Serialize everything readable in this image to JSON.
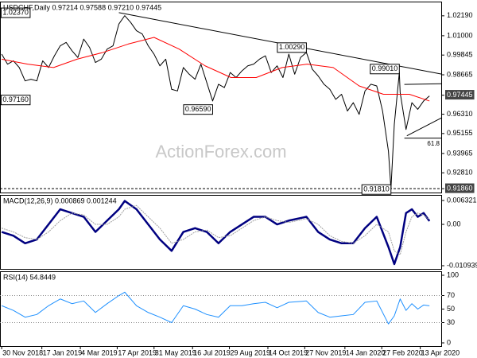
{
  "chart_data": [
    {
      "type": "line",
      "title": "USDCHF,Daily  0.97214 0.97588 0.97210 0.97445",
      "watermark": "ActionForex.com",
      "xlim": [
        "2018-11-28",
        "2020-05-09"
      ],
      "ylim": [
        0.91631,
        1.03039
      ],
      "yticks": [
        {
          "value": 1.0219,
          "label": "1.02190"
        },
        {
          "value": 1.01,
          "label": "1.01000"
        },
        0.99845,
        0.98665,
        0.97445,
        {
          "value": 0.9631,
          "label": "0.96310"
        },
        0.95155,
        0.93965,
        {
          "value": 0.9281,
          "label": "0.92810"
        },
        {
          "value": 0.9186,
          "label": "0.91860"
        }
      ],
      "highlighted_yticks": [
        0.97445,
        0.9186
      ],
      "series": [
        {
          "color": "#000000",
          "x": [
            "2018-11-30",
            "2018-12-07",
            "2018-12-14",
            "2018-12-21",
            "2018-12-28",
            "2019-01-04",
            "2019-01-11",
            "2019-01-18",
            "2019-01-25",
            "2019-02-01",
            "2019-02-08",
            "2019-02-15",
            "2019-02-22",
            "2019-03-01",
            "2019-03-08",
            "2019-03-15",
            "2019-03-22",
            "2019-03-29",
            "2019-04-05",
            "2019-04-12",
            "2019-04-19",
            "2019-04-26",
            "2019-05-03",
            "2019-05-10",
            "2019-05-17",
            "2019-05-24",
            "2019-05-31",
            "2019-06-07",
            "2019-06-14",
            "2019-06-21",
            "2019-06-28",
            "2019-07-05",
            "2019-07-12",
            "2019-07-19",
            "2019-07-26",
            "2019-08-02",
            "2019-08-09",
            "2019-08-16",
            "2019-08-23",
            "2019-08-30",
            "2019-09-06",
            "2019-09-13",
            "2019-09-20",
            "2019-09-27",
            "2019-10-04",
            "2019-10-11",
            "2019-10-18",
            "2019-10-25",
            "2019-11-01",
            "2019-11-08",
            "2019-11-15",
            "2019-11-22",
            "2019-11-29",
            "2019-12-06",
            "2019-12-13",
            "2019-12-20",
            "2019-12-27",
            "2020-01-03",
            "2020-01-10",
            "2020-01-17",
            "2020-01-24",
            "2020-01-31",
            "2020-02-07",
            "2020-02-14",
            "2020-02-21",
            "2020-02-28",
            "2020-03-06",
            "2020-03-09",
            "2020-03-13",
            "2020-03-19",
            "2020-03-20",
            "2020-03-27",
            "2020-04-03",
            "2020-04-10",
            "2020-04-17",
            "2020-04-24"
          ],
          "values": [
            0.999,
            0.993,
            0.995,
            0.991,
            0.983,
            0.984,
            0.983,
            0.995,
            0.991,
            0.998,
            1.004,
            1.006,
            1.001,
            0.997,
            1.008,
            1.003,
            0.994,
            0.996,
            1.002,
            1.004,
            1.017,
            1.022,
            1.018,
            1.013,
            1.011,
            1.004,
            0.999,
            0.992,
            0.996,
            0.978,
            0.977,
            0.991,
            0.987,
            0.984,
            0.993,
            0.982,
            0.971,
            0.981,
            0.979,
            0.988,
            0.985,
            0.989,
            0.992,
            0.993,
            0.996,
            0.998,
            0.988,
            0.992,
            0.985,
            0.999,
            0.987,
            0.997,
            1.0,
            0.99,
            0.986,
            0.981,
            0.978,
            0.972,
            0.975,
            0.965,
            0.97,
            0.963,
            0.977,
            0.981,
            0.98,
            0.965,
            0.941,
            0.9186,
            0.957,
            0.988,
            0.976,
            0.954,
            0.97,
            0.966,
            0.971,
            0.974
          ]
        },
        {
          "color": "#ff0000",
          "x": [
            "2018-11-30",
            "2018-12-31",
            "2019-01-31",
            "2019-02-28",
            "2019-03-31",
            "2019-04-30",
            "2019-05-31",
            "2019-06-30",
            "2019-07-31",
            "2019-08-31",
            "2019-09-30",
            "2019-10-31",
            "2019-11-30",
            "2019-12-31",
            "2020-01-31",
            "2020-02-29",
            "2020-03-31",
            "2020-04-24"
          ],
          "values": [
            0.996,
            0.993,
            0.991,
            0.996,
            1.0,
            1.005,
            1.009,
            1.002,
            0.992,
            0.985,
            0.985,
            0.991,
            0.993,
            0.991,
            0.98,
            0.975,
            0.975,
            0.971
          ]
        }
      ],
      "levels": [
        {
          "x": "2019-01-03",
          "value": 1.0237,
          "label": "1.02370"
        },
        {
          "x": "2019-01-03",
          "value": 0.9716,
          "label": "0.97160"
        },
        {
          "x": "2019-08-09",
          "value": 0.9659,
          "label": "0.96590"
        },
        {
          "x": "2019-11-29",
          "value": 1.0029,
          "label": "1.00290"
        },
        {
          "x": "2020-03-19",
          "value": 0.9901,
          "label": "0.99010"
        },
        {
          "x": "2020-03-09",
          "value": 0.9181,
          "label": "0.91810"
        }
      ],
      "trendlines": [
        {
          "x": [
            "2019-04-19",
            "2020-05-09"
          ],
          "values": [
            1.0238,
            0.987
          ]
        },
        {
          "x": [
            "2020-03-25",
            "2020-05-09"
          ],
          "values": [
            0.9809,
            0.9813
          ]
        },
        {
          "x": [
            "2020-03-28",
            "2020-05-09"
          ],
          "values": [
            0.9502,
            0.9611
          ]
        }
      ],
      "fib": {
        "x": "2020-03-25",
        "value": 0.9488,
        "label": "61.8"
      },
      "dashed_levels": [
        0.9186
      ]
    },
    {
      "type": "line",
      "title": "MACD(12,26,9) 0.000869 0.001244",
      "xlim": [
        "2018-11-28",
        "2020-05-09"
      ],
      "ylim": [
        -0.011781,
        0.007794
      ],
      "yticks": [
        0.006321,
        {
          "value": 0,
          "label": "0.00"
        },
        -0.010939
      ],
      "series": [
        {
          "color": "#000080",
          "x": [
            "2018-11-30",
            "2018-12-14",
            "2018-12-28",
            "2019-01-11",
            "2019-01-25",
            "2019-02-08",
            "2019-02-22",
            "2019-03-08",
            "2019-03-22",
            "2019-04-05",
            "2019-04-19",
            "2019-04-26",
            "2019-05-10",
            "2019-05-24",
            "2019-06-07",
            "2019-06-21",
            "2019-07-05",
            "2019-07-19",
            "2019-08-02",
            "2019-08-16",
            "2019-08-30",
            "2019-09-13",
            "2019-09-27",
            "2019-10-11",
            "2019-10-25",
            "2019-11-08",
            "2019-11-29",
            "2019-12-13",
            "2019-12-27",
            "2020-01-10",
            "2020-01-24",
            "2020-02-07",
            "2020-02-21",
            "2020-03-06",
            "2020-03-13",
            "2020-03-20",
            "2020-03-27",
            "2020-04-03",
            "2020-04-10",
            "2020-04-17",
            "2020-04-24"
          ],
          "values": [
            -0.002,
            -0.003,
            -0.005,
            -0.004,
            0,
            0.004,
            0.003,
            0.002,
            -0.002,
            0.001,
            0.004,
            0.0062,
            0.004,
            0,
            -0.004,
            -0.007,
            -0.002,
            -0.001,
            -0.002,
            -0.005,
            -0.002,
            0,
            0.002,
            0.002,
            0,
            0.001,
            0.002,
            -0.002,
            -0.004,
            -0.005,
            -0.005,
            -0.001,
            0.002,
            -0.006,
            -0.0105,
            -0.006,
            0.003,
            0.004,
            0.002,
            0.003,
            0.000869
          ]
        },
        {
          "color": "#a0a0a0",
          "x": [
            "2018-11-30",
            "2018-12-14",
            "2018-12-28",
            "2019-01-11",
            "2019-01-25",
            "2019-02-08",
            "2019-02-22",
            "2019-03-08",
            "2019-03-22",
            "2019-04-05",
            "2019-04-19",
            "2019-04-26",
            "2019-05-10",
            "2019-05-24",
            "2019-06-07",
            "2019-06-21",
            "2019-07-05",
            "2019-07-19",
            "2019-08-02",
            "2019-08-16",
            "2019-08-30",
            "2019-09-13",
            "2019-09-27",
            "2019-10-11",
            "2019-10-25",
            "2019-11-08",
            "2019-11-29",
            "2019-12-13",
            "2019-12-27",
            "2020-01-10",
            "2020-01-24",
            "2020-02-07",
            "2020-02-21",
            "2020-03-06",
            "2020-03-13",
            "2020-03-20",
            "2020-03-27",
            "2020-04-03",
            "2020-04-10",
            "2020-04-17",
            "2020-04-24"
          ],
          "values": [
            -0.001,
            -0.002,
            -0.0035,
            -0.004,
            -0.002,
            0.001,
            0.003,
            0.0025,
            0,
            0,
            0.002,
            0.004,
            0.005,
            0.002,
            -0.001,
            -0.005,
            -0.004,
            -0.002,
            -0.0015,
            -0.0035,
            -0.003,
            -0.001,
            0.001,
            0.002,
            0.001,
            0.0005,
            0.0015,
            0,
            -0.003,
            -0.0045,
            -0.005,
            -0.003,
            0,
            -0.002,
            -0.007,
            -0.008,
            -0.002,
            0.002,
            0.003,
            0.0025,
            0.001244
          ]
        }
      ]
    },
    {
      "type": "line",
      "title": "RSI(14) 54.8449",
      "xlim": [
        "2018-11-28",
        "2020-05-09"
      ],
      "ylim": [
        -4.7,
        105.9
      ],
      "yticks": [
        100,
        70,
        50,
        30,
        0
      ],
      "levels": [
        70,
        30
      ],
      "xticks": [
        {
          "value": "2018-11-30",
          "label": "30 Nov 2018"
        },
        {
          "value": "2019-01-17",
          "label": "17 Jan 2019"
        },
        {
          "value": "2019-03-04",
          "label": "4 Mar 2019"
        },
        {
          "value": "2019-04-17",
          "label": "17 Apr 2019"
        },
        {
          "value": "2019-05-31",
          "label": "31 May 2019"
        },
        {
          "value": "2019-07-16",
          "label": "16 Jul 2019"
        },
        {
          "value": "2019-08-29",
          "label": "29 Aug 2019"
        },
        {
          "value": "2019-10-14",
          "label": "14 Oct 2019"
        },
        {
          "value": "2019-11-27",
          "label": "27 Nov 2019"
        },
        {
          "value": "2020-01-14",
          "label": "14 Jan 2020"
        },
        {
          "value": "2020-02-27",
          "label": "27 Feb 2020"
        },
        {
          "value": "2020-04-13",
          "label": "13 Apr 2020"
        }
      ],
      "series": [
        {
          "color": "#1e90ff",
          "x": [
            "2018-11-30",
            "2018-12-14",
            "2018-12-28",
            "2019-01-11",
            "2019-01-25",
            "2019-02-08",
            "2019-02-22",
            "2019-03-08",
            "2019-03-22",
            "2019-04-05",
            "2019-04-19",
            "2019-04-26",
            "2019-05-10",
            "2019-05-24",
            "2019-06-07",
            "2019-06-21",
            "2019-07-05",
            "2019-07-19",
            "2019-08-02",
            "2019-08-16",
            "2019-08-30",
            "2019-09-13",
            "2019-09-27",
            "2019-10-11",
            "2019-10-25",
            "2019-11-08",
            "2019-11-29",
            "2019-12-13",
            "2019-12-27",
            "2020-01-10",
            "2020-01-24",
            "2020-02-07",
            "2020-02-21",
            "2020-03-06",
            "2020-03-13",
            "2020-03-20",
            "2020-03-27",
            "2020-04-03",
            "2020-04-10",
            "2020-04-17",
            "2020-04-24"
          ],
          "values": [
            55,
            48,
            38,
            42,
            55,
            65,
            58,
            62,
            45,
            58,
            70,
            75,
            55,
            45,
            38,
            30,
            55,
            50,
            42,
            38,
            55,
            55,
            58,
            60,
            52,
            60,
            62,
            45,
            38,
            40,
            42,
            60,
            62,
            28,
            40,
            65,
            48,
            58,
            50,
            56,
            54.8449
          ]
        }
      ]
    }
  ]
}
